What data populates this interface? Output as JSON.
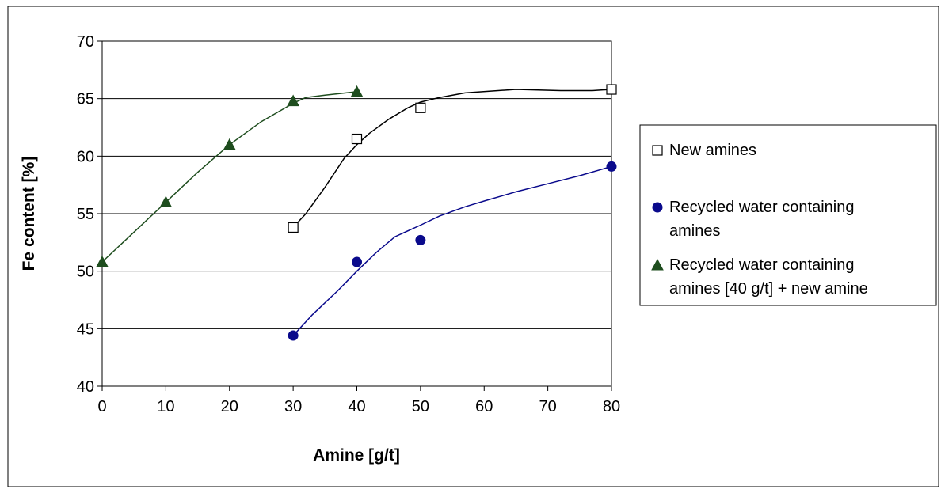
{
  "chart_data": {
    "type": "line",
    "title": "",
    "xlabel": "Amine [g/t]",
    "ylabel": "Fe content [%]",
    "x_categories": [
      "0",
      "10",
      "20",
      "30",
      "40",
      "50",
      "60",
      "70",
      "80"
    ],
    "ylim": [
      40,
      70
    ],
    "yticks": [
      "40",
      "45",
      "50",
      "55",
      "60",
      "65",
      "70"
    ],
    "grid": "horizontal",
    "legend_position": "right",
    "series": [
      {
        "name": "New amines",
        "marker": "square-open",
        "color": "#000000",
        "x": [
          30,
          40,
          50,
          80
        ],
        "y": [
          53.8,
          61.5,
          64.2,
          65.8
        ],
        "trend_x": [
          30,
          32,
          35,
          38,
          40,
          42,
          45,
          48,
          50,
          53,
          57,
          65,
          72,
          77,
          80
        ],
        "trend_y": [
          53.8,
          55.0,
          57.3,
          59.8,
          61.0,
          62.0,
          63.2,
          64.2,
          64.7,
          65.1,
          65.5,
          65.8,
          65.7,
          65.7,
          65.8
        ]
      },
      {
        "name": "Recycled water containing amines",
        "marker": "circle",
        "color": "#0a0a8c",
        "x": [
          30,
          40,
          50,
          80
        ],
        "y": [
          44.4,
          50.8,
          52.7,
          59.1
        ],
        "trend_x": [
          30,
          33,
          37,
          40,
          43,
          46,
          50,
          53,
          57,
          60,
          65,
          70,
          75,
          80
        ],
        "trend_y": [
          44.4,
          46.2,
          48.3,
          50.0,
          51.6,
          53.0,
          54.0,
          54.8,
          55.6,
          56.1,
          56.9,
          57.6,
          58.3,
          59.1
        ]
      },
      {
        "name": "Recycled water containing amines [40 g/t] + new amine",
        "marker": "triangle",
        "color": "#1e4d1e",
        "x": [
          0,
          10,
          20,
          30,
          40
        ],
        "y": [
          50.8,
          56.0,
          61.0,
          64.8,
          65.6
        ],
        "trend_x": [
          0,
          5,
          10,
          15,
          20,
          25,
          30,
          32,
          35,
          40
        ],
        "trend_y": [
          50.8,
          53.4,
          56.0,
          58.6,
          61.0,
          63.0,
          64.6,
          65.1,
          65.3,
          65.6
        ]
      }
    ]
  }
}
